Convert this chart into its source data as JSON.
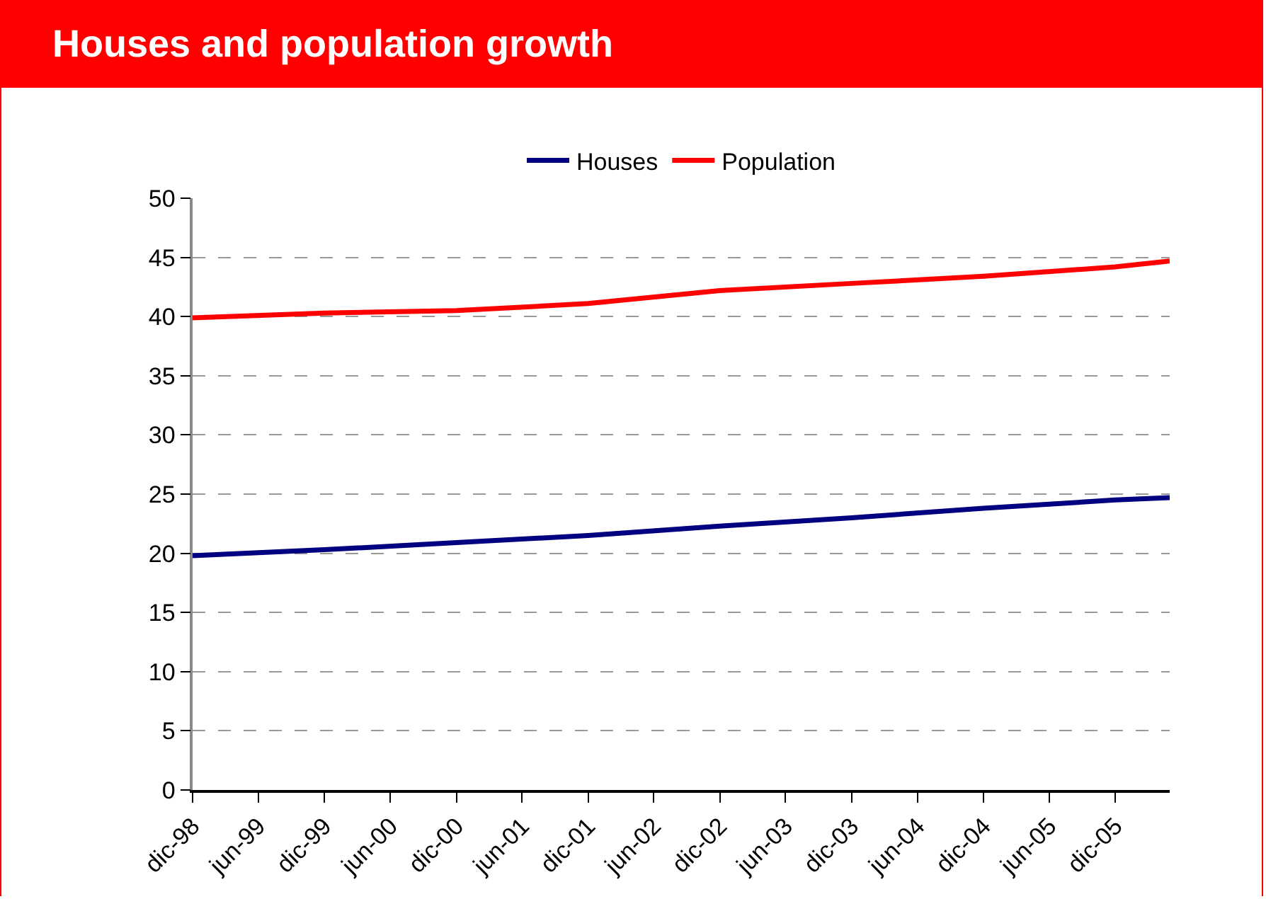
{
  "chart_data": {
    "type": "line",
    "title": "Houses and population growth",
    "x": [
      "1998-12",
      "1999-12",
      "2000-12",
      "2001-12",
      "2002-12",
      "2003-12",
      "2004-12",
      "2005-12",
      "2006-05"
    ],
    "series": [
      {
        "name": "Houses",
        "color": "#000080",
        "values": [
          19.8,
          20.3,
          20.9,
          21.5,
          22.3,
          23.0,
          23.8,
          24.5,
          24.7
        ]
      },
      {
        "name": "Population",
        "color": "#ff0000",
        "values": [
          39.9,
          40.3,
          40.5,
          41.1,
          42.2,
          42.8,
          43.4,
          44.2,
          44.7
        ]
      }
    ],
    "xlim": [
      "1998-12",
      "2006-05"
    ],
    "xticks": [
      {
        "value": "1998-12",
        "label": "dic-98"
      },
      {
        "value": "1999-06",
        "label": "jun-99"
      },
      {
        "value": "1999-12",
        "label": "dic-99"
      },
      {
        "value": "2000-06",
        "label": "jun-00"
      },
      {
        "value": "2000-12",
        "label": "dic-00"
      },
      {
        "value": "2001-06",
        "label": "jun-01"
      },
      {
        "value": "2001-12",
        "label": "dic-01"
      },
      {
        "value": "2002-06",
        "label": "jun-02"
      },
      {
        "value": "2002-12",
        "label": "dic-02"
      },
      {
        "value": "2003-06",
        "label": "jun-03"
      },
      {
        "value": "2003-12",
        "label": "dic-03"
      },
      {
        "value": "2004-06",
        "label": "jun-04"
      },
      {
        "value": "2004-12",
        "label": "dic-04"
      },
      {
        "value": "2005-06",
        "label": "jun-05"
      },
      {
        "value": "2005-12",
        "label": "dic-05"
      }
    ],
    "ylim": [
      0,
      50
    ],
    "yticks": [
      0,
      5,
      10,
      15,
      20,
      25,
      30,
      35,
      40,
      45,
      50
    ],
    "grid": "y",
    "legend": "top",
    "marker": "none",
    "line_style": "solid"
  }
}
